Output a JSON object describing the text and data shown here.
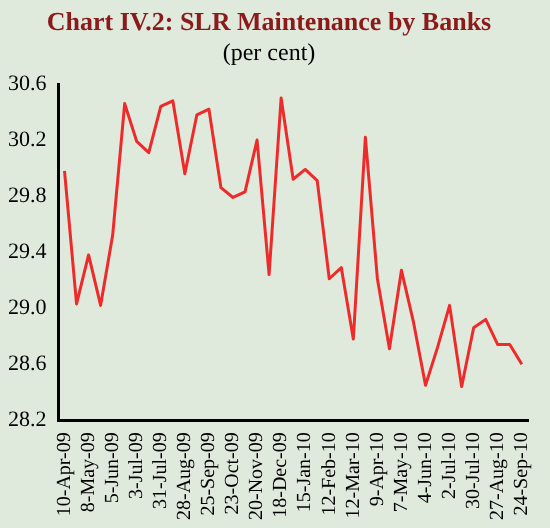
{
  "chart_data": {
    "type": "line",
    "title": "Chart IV.2: SLR Maintenance by Banks",
    "subtitle": "(per cent)",
    "categories": [
      "10-Apr-09",
      null,
      "8-May-09",
      null,
      "5-Jun-09",
      null,
      "3-Jul-09",
      null,
      "31-Jul-09",
      null,
      "28-Aug-09",
      null,
      "25-Sep-09",
      null,
      "23-Oct-09",
      null,
      "20-Nov-09",
      null,
      "18-Dec-09",
      null,
      "15-Jan-10",
      null,
      "12-Feb-10",
      null,
      "12-Mar-10",
      null,
      "9-Apr-10",
      null,
      "7-May-10",
      null,
      "4-Jun-10",
      null,
      "2-Jul-10",
      null,
      "30-Jul-10",
      null,
      "27-Aug-10",
      null,
      "24-Sep-10"
    ],
    "series": [
      {
        "color": "#ee2a2a",
        "values": [
          29.98,
          29.03,
          29.38,
          29.02,
          29.52,
          30.46,
          30.19,
          30.11,
          30.44,
          30.48,
          29.96,
          30.38,
          30.42,
          29.86,
          29.79,
          29.83,
          30.2,
          29.24,
          30.5,
          29.92,
          29.99,
          29.91,
          29.21,
          29.29,
          28.78,
          30.22,
          29.21,
          28.71,
          29.27,
          28.9,
          28.45,
          28.72,
          29.02,
          28.44,
          28.86,
          28.92,
          28.74,
          28.74,
          28.6
        ]
      }
    ],
    "ylim": [
      28.2,
      30.6
    ],
    "yticks": [
      {
        "value": 28.2,
        "label": "28.2"
      },
      {
        "value": 28.6,
        "label": "28.6"
      },
      {
        "value": 29.0,
        "label": "29.0"
      },
      {
        "value": 29.4,
        "label": "29.4"
      },
      {
        "value": 29.8,
        "label": "29.8"
      },
      {
        "value": 30.2,
        "label": "30.2"
      },
      {
        "value": 30.6,
        "label": "30.6"
      }
    ],
    "grid": false,
    "legend": false,
    "marker": "none",
    "line_style": "solid"
  }
}
